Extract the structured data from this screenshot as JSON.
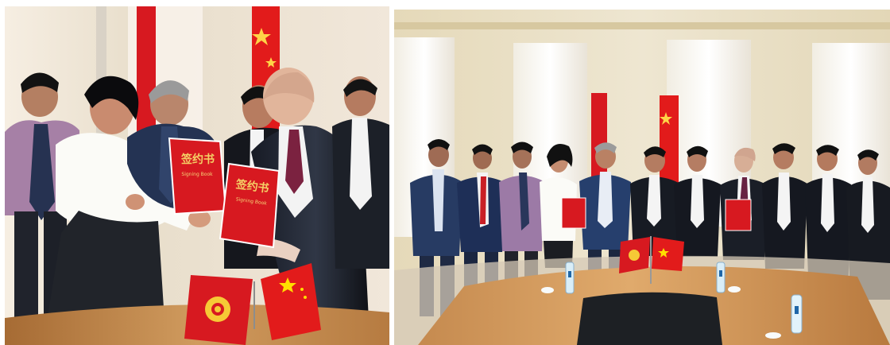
{
  "scene": {
    "left_folder_title": "签约书",
    "left_folder_subtitle": "Signing Book",
    "right_folder_title": "签约书",
    "right_folder_subtitle": "Signing Book",
    "colors": {
      "background": "#ffffff",
      "chinese_flag": "#e31b1b",
      "kyrgyz_flag": "#d71920",
      "flag_star": "#ffde00",
      "folder_red": "#d71920",
      "table_wood": "#c99557"
    }
  }
}
